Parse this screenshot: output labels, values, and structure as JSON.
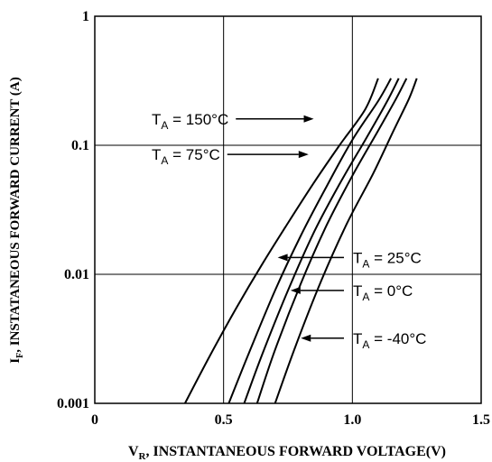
{
  "chart_data": {
    "type": "line",
    "xlabel": {
      "main": "V",
      "sub": "R",
      "rest": ", INSTANTANEOUS FORWARD VOLTAGE(V)"
    },
    "ylabel": {
      "main": "I",
      "sub": "F",
      "rest": ", INSTATANEOUS FORWARD CURRENT (A)"
    },
    "xlim": [
      0,
      1.5
    ],
    "ylim": [
      0.001,
      1
    ],
    "yscale": "log",
    "grid": true,
    "x_ticks": [
      {
        "value": 0,
        "label": "0"
      },
      {
        "value": 0.5,
        "label": "0.5"
      },
      {
        "value": 1.0,
        "label": "1.0"
      },
      {
        "value": 1.5,
        "label": "1.5"
      }
    ],
    "y_ticks": [
      {
        "value": 0.001,
        "label": "0.001"
      },
      {
        "value": 0.01,
        "label": "0.01"
      },
      {
        "value": 0.1,
        "label": "0.1"
      },
      {
        "value": 1,
        "label": "1"
      }
    ],
    "series": [
      {
        "name": "150°C",
        "x": [
          0.35,
          0.45,
          0.55,
          0.65,
          0.75,
          0.85,
          0.95,
          1.05,
          1.1
        ],
        "y": [
          0.001,
          0.0024,
          0.0055,
          0.012,
          0.025,
          0.051,
          0.1,
          0.19,
          0.33
        ]
      },
      {
        "name": "75°C",
        "x": [
          0.52,
          0.6,
          0.7,
          0.8,
          0.9,
          1.0,
          1.1,
          1.15
        ],
        "y": [
          0.001,
          0.0025,
          0.0075,
          0.02,
          0.048,
          0.11,
          0.22,
          0.33
        ]
      },
      {
        "name": "25°C",
        "x": [
          0.58,
          0.65,
          0.75,
          0.85,
          0.95,
          1.05,
          1.13,
          1.18
        ],
        "y": [
          0.001,
          0.0024,
          0.0075,
          0.021,
          0.05,
          0.11,
          0.21,
          0.33
        ]
      },
      {
        "name": "0°C",
        "x": [
          0.63,
          0.7,
          0.8,
          0.9,
          1.0,
          1.1,
          1.17,
          1.21
        ],
        "y": [
          0.001,
          0.0026,
          0.0085,
          0.024,
          0.058,
          0.13,
          0.23,
          0.33
        ]
      },
      {
        "name": "-40°C",
        "x": [
          0.7,
          0.78,
          0.88,
          0.98,
          1.08,
          1.16,
          1.22,
          1.25
        ],
        "y": [
          0.001,
          0.0028,
          0.009,
          0.025,
          0.06,
          0.13,
          0.23,
          0.33
        ]
      }
    ],
    "annotations": [
      {
        "main": "T",
        "sub": "A",
        "rest": " = 150°C",
        "side": "left",
        "target_x": 0.85,
        "target_y": 0.16
      },
      {
        "main": "T",
        "sub": "A",
        "rest": " = 75°C",
        "side": "left",
        "target_x": 0.83,
        "target_y": 0.085
      },
      {
        "main": "T",
        "sub": "A",
        "rest": " = 25°C",
        "side": "right",
        "target_x": 0.71,
        "target_y": 0.0135
      },
      {
        "main": "T",
        "sub": "A",
        "rest": " = 0°C",
        "side": "right",
        "target_x": 0.76,
        "target_y": 0.0075
      },
      {
        "main": "T",
        "sub": "A",
        "rest": " = -40°C",
        "side": "right",
        "target_x": 0.8,
        "target_y": 0.0032
      }
    ]
  }
}
